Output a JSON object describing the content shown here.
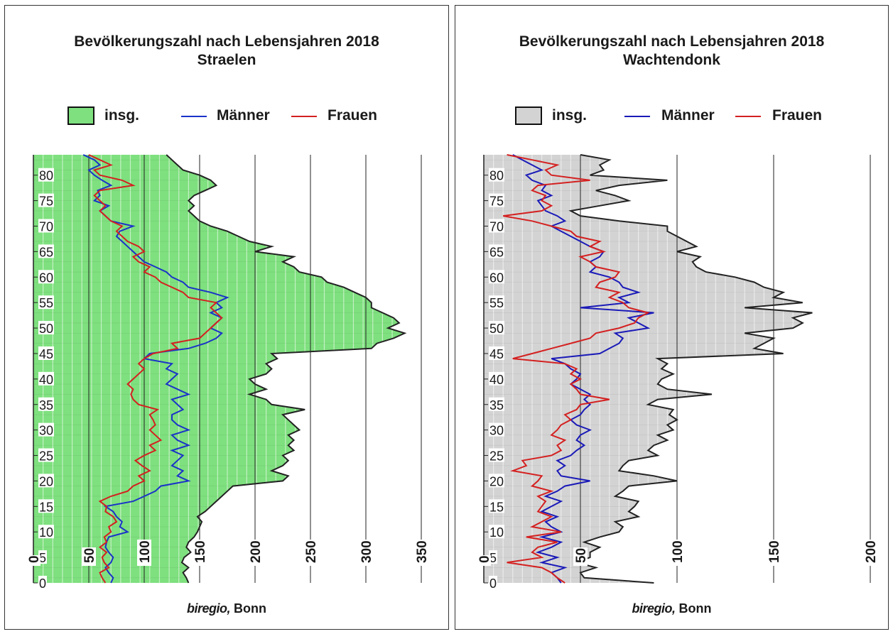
{
  "chart_data": [
    {
      "type": "area",
      "title": "Bevölkerungszahl nach Lebensjahren 2018",
      "subtitle": "Straelen",
      "orientation": "horizontal-population-pyramid",
      "y_axis": {
        "label": "",
        "range": [
          0,
          84
        ],
        "ticks": [
          0,
          5,
          10,
          15,
          20,
          25,
          30,
          35,
          40,
          45,
          50,
          55,
          60,
          65,
          70,
          75,
          80
        ]
      },
      "x_axis": {
        "label": "",
        "range": [
          0,
          350
        ],
        "ticks": [
          0,
          50,
          100,
          150,
          200,
          250,
          300,
          350
        ]
      },
      "legend": [
        "insg.",
        "Männer",
        "Frauen"
      ],
      "credit_italic": "biregio,",
      "credit_normal": " Bonn",
      "colors": {
        "fill": "#7ee07e",
        "fill_stripe": "#ffffff",
        "men": "#1a33c8",
        "women": "#d42020",
        "outline": "#222222"
      },
      "age": [
        0,
        1,
        2,
        3,
        4,
        5,
        6,
        7,
        8,
        9,
        10,
        11,
        12,
        13,
        14,
        15,
        16,
        17,
        18,
        19,
        20,
        21,
        22,
        23,
        24,
        25,
        26,
        27,
        28,
        29,
        30,
        31,
        32,
        33,
        34,
        35,
        36,
        37,
        38,
        39,
        40,
        41,
        42,
        43,
        44,
        45,
        46,
        47,
        48,
        49,
        50,
        51,
        52,
        53,
        54,
        55,
        56,
        57,
        58,
        59,
        60,
        61,
        62,
        63,
        64,
        65,
        66,
        67,
        68,
        69,
        70,
        71,
        72,
        73,
        74,
        75,
        76,
        77,
        78,
        79,
        80,
        81,
        82,
        83,
        84
      ],
      "series": [
        {
          "name": "insg.",
          "values": [
            140,
            138,
            135,
            140,
            134,
            136,
            142,
            138,
            140,
            145,
            148,
            150,
            152,
            148,
            155,
            160,
            165,
            170,
            175,
            180,
            225,
            230,
            215,
            225,
            230,
            225,
            235,
            230,
            235,
            230,
            240,
            235,
            230,
            225,
            245,
            215,
            210,
            195,
            210,
            200,
            195,
            210,
            215,
            210,
            220,
            215,
            305,
            310,
            325,
            335,
            320,
            330,
            325,
            315,
            305,
            305,
            300,
            290,
            280,
            265,
            260,
            240,
            235,
            225,
            235,
            200,
            215,
            195,
            185,
            175,
            160,
            150,
            145,
            140,
            145,
            140,
            145,
            155,
            165,
            160,
            150,
            135,
            130,
            125,
            120
          ]
        },
        {
          "name": "Männer",
          "values": [
            70,
            72,
            68,
            65,
            70,
            72,
            68,
            65,
            66,
            68,
            85,
            78,
            80,
            75,
            72,
            65,
            90,
            100,
            110,
            115,
            140,
            130,
            135,
            125,
            130,
            135,
            125,
            140,
            130,
            125,
            140,
            130,
            125,
            125,
            135,
            130,
            125,
            140,
            130,
            120,
            125,
            130,
            120,
            125,
            100,
            105,
            140,
            155,
            165,
            170,
            160,
            165,
            170,
            160,
            170,
            165,
            175,
            160,
            140,
            135,
            125,
            120,
            110,
            100,
            95,
            90,
            85,
            80,
            75,
            78,
            90,
            70,
            65,
            60,
            68,
            55,
            60,
            58,
            70,
            62,
            55,
            50,
            60,
            55,
            45
          ]
        },
        {
          "name": "Frauen",
          "values": [
            65,
            62,
            60,
            68,
            64,
            62,
            66,
            60,
            66,
            64,
            70,
            68,
            75,
            72,
            65,
            66,
            60,
            70,
            85,
            90,
            100,
            95,
            105,
            98,
            92,
            100,
            110,
            105,
            115,
            110,
            105,
            110,
            108,
            105,
            112,
            95,
            90,
            88,
            90,
            85,
            90,
            95,
            100,
            95,
            100,
            108,
            130,
            125,
            150,
            155,
            160,
            165,
            170,
            165,
            160,
            165,
            140,
            135,
            125,
            115,
            110,
            100,
            105,
            95,
            90,
            100,
            95,
            85,
            80,
            75,
            80,
            70,
            65,
            60,
            65,
            60,
            55,
            60,
            90,
            80,
            60,
            55,
            70,
            60,
            50
          ]
        }
      ]
    },
    {
      "type": "area",
      "title": "Bevölkerungszahl nach Lebensjahren 2018",
      "subtitle": "Wachtendonk",
      "orientation": "horizontal-population-pyramid",
      "y_axis": {
        "label": "",
        "range": [
          0,
          84
        ],
        "ticks": [
          0,
          5,
          10,
          15,
          20,
          25,
          30,
          35,
          40,
          45,
          50,
          55,
          60,
          65,
          70,
          75,
          80
        ]
      },
      "x_axis": {
        "label": "",
        "range": [
          0,
          200
        ],
        "ticks": [
          0,
          50,
          100,
          150,
          200
        ]
      },
      "legend": [
        "insg.",
        "Männer",
        "Frauen"
      ],
      "credit_italic": "biregio,",
      "credit_normal": " Bonn",
      "colors": {
        "fill": "#d3d3d3",
        "fill_stripe": "#ffffff",
        "men": "#1a1ab8",
        "women": "#d42020",
        "outline": "#222222"
      },
      "age": [
        0,
        1,
        2,
        3,
        4,
        5,
        6,
        7,
        8,
        9,
        10,
        11,
        12,
        13,
        14,
        15,
        16,
        17,
        18,
        19,
        20,
        21,
        22,
        23,
        24,
        25,
        26,
        27,
        28,
        29,
        30,
        31,
        32,
        33,
        34,
        35,
        36,
        37,
        38,
        39,
        40,
        41,
        42,
        43,
        44,
        45,
        46,
        47,
        48,
        49,
        50,
        51,
        52,
        53,
        54,
        55,
        56,
        57,
        58,
        59,
        60,
        61,
        62,
        63,
        64,
        65,
        66,
        67,
        68,
        69,
        70,
        71,
        72,
        73,
        74,
        75,
        76,
        77,
        78,
        79,
        80,
        81,
        82,
        83,
        84
      ],
      "series": [
        {
          "name": "insg.",
          "values": [
            88,
            52,
            50,
            58,
            48,
            55,
            55,
            60,
            52,
            60,
            70,
            72,
            68,
            80,
            75,
            78,
            80,
            68,
            72,
            75,
            100,
            88,
            70,
            72,
            75,
            90,
            85,
            88,
            95,
            90,
            98,
            95,
            100,
            96,
            98,
            85,
            90,
            118,
            95,
            90,
            92,
            98,
            92,
            95,
            90,
            155,
            140,
            145,
            150,
            135,
            160,
            165,
            160,
            170,
            135,
            165,
            150,
            155,
            145,
            140,
            130,
            115,
            110,
            108,
            112,
            100,
            110,
            105,
            100,
            95,
            95,
            70,
            50,
            45,
            60,
            75,
            68,
            58,
            70,
            95,
            55,
            62,
            60,
            65,
            50
          ]
        },
        {
          "name": "Männer",
          "values": [
            40,
            38,
            35,
            42,
            30,
            38,
            28,
            35,
            40,
            30,
            40,
            35,
            32,
            38,
            30,
            35,
            40,
            32,
            38,
            42,
            55,
            40,
            38,
            42,
            38,
            45,
            48,
            52,
            48,
            50,
            55,
            48,
            45,
            50,
            52,
            55,
            52,
            55,
            50,
            45,
            48,
            50,
            45,
            42,
            35,
            60,
            65,
            70,
            72,
            68,
            85,
            80,
            75,
            88,
            50,
            75,
            70,
            80,
            72,
            70,
            65,
            55,
            58,
            55,
            60,
            62,
            55,
            50,
            45,
            40,
            35,
            42,
            38,
            32,
            30,
            28,
            35,
            30,
            32,
            25,
            22,
            30,
            25,
            20,
            15
          ]
        },
        {
          "name": "Frauen",
          "values": [
            42,
            38,
            35,
            30,
            12,
            30,
            25,
            28,
            38,
            22,
            40,
            25,
            30,
            35,
            28,
            30,
            32,
            28,
            35,
            25,
            28,
            30,
            15,
            22,
            20,
            35,
            40,
            38,
            42,
            35,
            38,
            40,
            45,
            42,
            48,
            50,
            65,
            50,
            48,
            45,
            50,
            45,
            48,
            42,
            15,
            25,
            35,
            45,
            55,
            58,
            70,
            78,
            80,
            85,
            75,
            72,
            65,
            70,
            58,
            60,
            68,
            70,
            58,
            55,
            50,
            62,
            55,
            60,
            48,
            45,
            35,
            25,
            10,
            30,
            35,
            30,
            32,
            25,
            28,
            55,
            35,
            32,
            38,
            25,
            12
          ]
        }
      ]
    }
  ]
}
